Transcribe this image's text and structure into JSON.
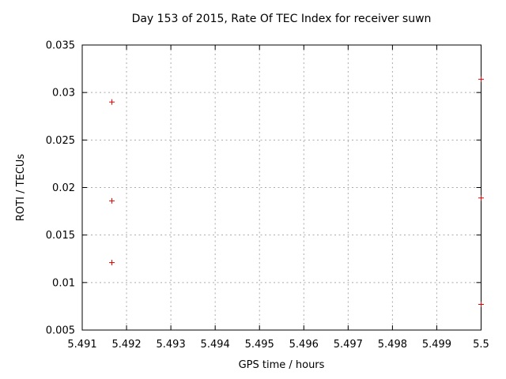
{
  "window": {
    "background": "#ffffff"
  },
  "chart_data": {
    "type": "scatter",
    "title": "Day 153 of 2015, Rate Of TEC Index for receiver suwn",
    "xlabel": "GPS time / hours",
    "ylabel": "ROTI / TECUs",
    "xlim": [
      5.491,
      5.5
    ],
    "ylim": [
      0.005,
      0.035
    ],
    "xticks": [
      {
        "v": 5.491,
        "label": "5.491"
      },
      {
        "v": 5.492,
        "label": "5.492"
      },
      {
        "v": 5.493,
        "label": "5.493"
      },
      {
        "v": 5.494,
        "label": "5.494"
      },
      {
        "v": 5.495,
        "label": "5.495"
      },
      {
        "v": 5.496,
        "label": "5.496"
      },
      {
        "v": 5.497,
        "label": "5.497"
      },
      {
        "v": 5.498,
        "label": "5.498"
      },
      {
        "v": 5.499,
        "label": "5.499"
      },
      {
        "v": 5.5,
        "label": "5.5"
      }
    ],
    "yticks": [
      {
        "v": 0.005,
        "label": "0.005"
      },
      {
        "v": 0.01,
        "label": "0.01"
      },
      {
        "v": 0.015,
        "label": "0.015"
      },
      {
        "v": 0.02,
        "label": "0.02"
      },
      {
        "v": 0.025,
        "label": "0.025"
      },
      {
        "v": 0.03,
        "label": "0.03"
      },
      {
        "v": 0.035,
        "label": "0.035"
      }
    ],
    "grid": true,
    "legend": "none",
    "marker": "plus",
    "marker_color": "#dd0000",
    "grid_color": "#aaaaaa",
    "border_color": "#000000",
    "series": [
      {
        "name": "ROTI",
        "points": [
          [
            5.49167,
            0.029
          ],
          [
            5.49167,
            0.0186
          ],
          [
            5.49167,
            0.0121
          ],
          [
            5.5,
            0.0314
          ],
          [
            5.5,
            0.0189
          ],
          [
            5.5,
            0.0077
          ]
        ]
      }
    ]
  }
}
